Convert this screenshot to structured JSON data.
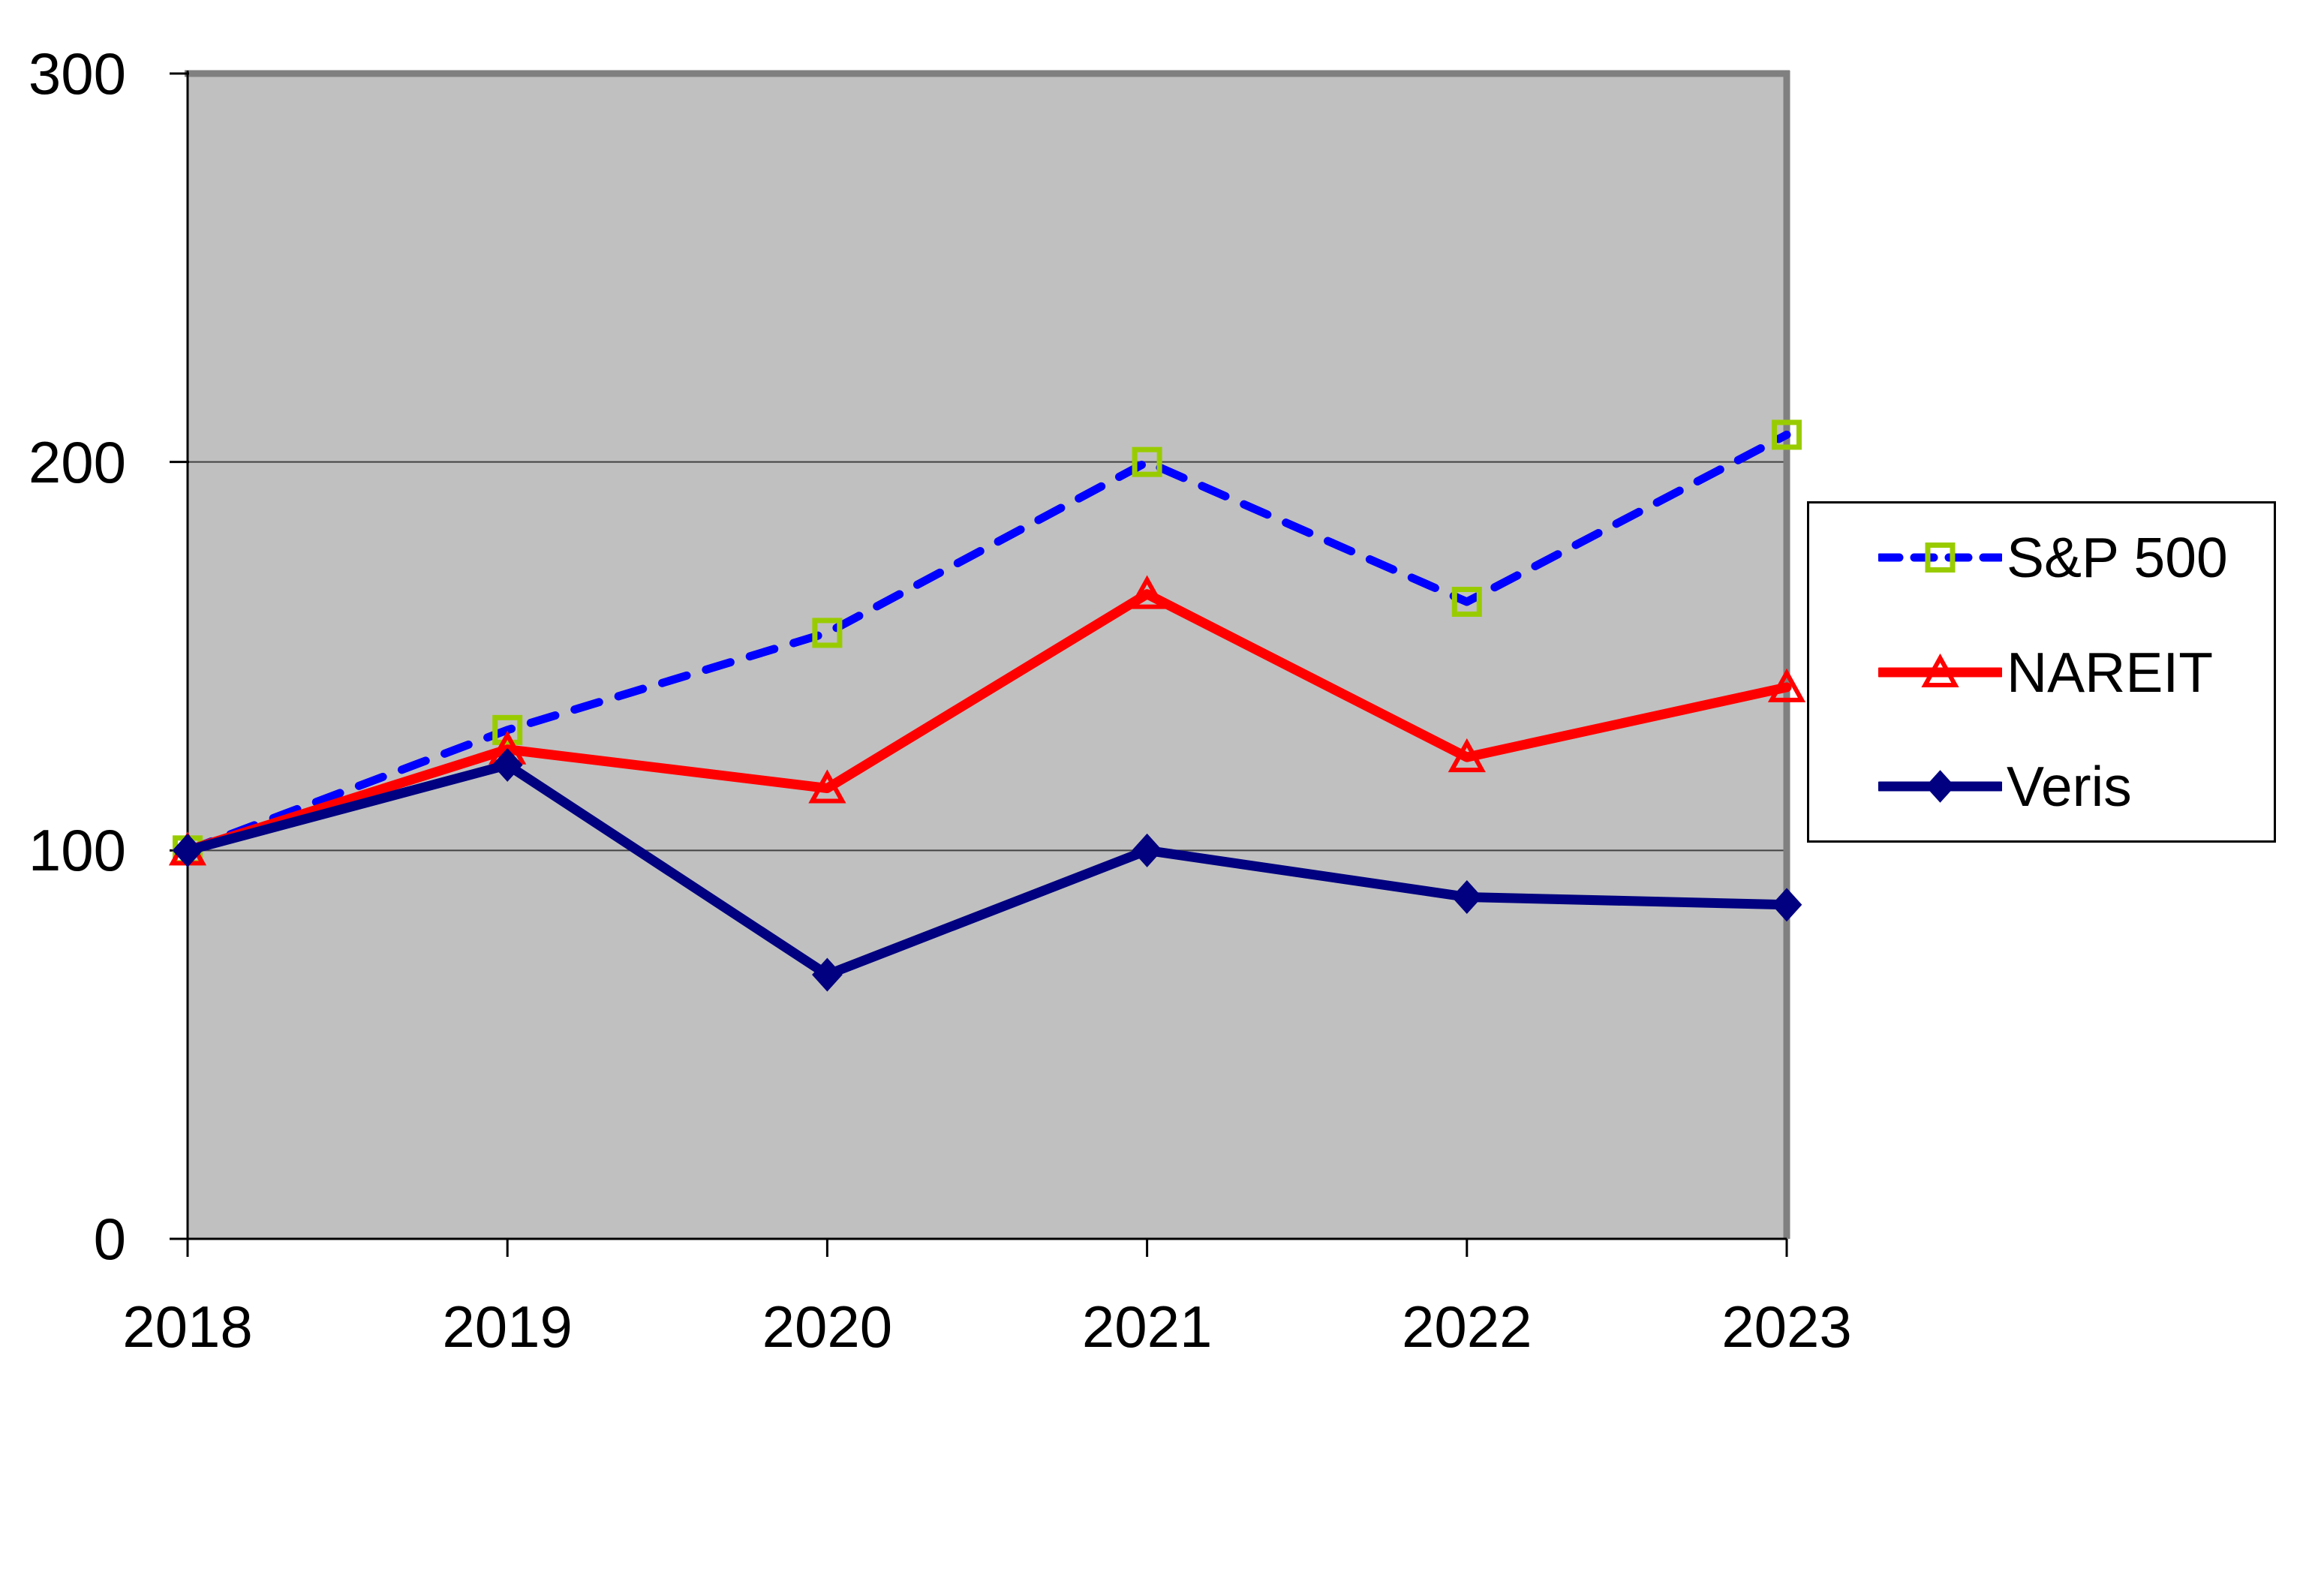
{
  "chart_data": {
    "type": "line",
    "title": "",
    "xlabel": "",
    "ylabel": "",
    "categories": [
      "2018",
      "2019",
      "2020",
      "2021",
      "2022",
      "2023"
    ],
    "series": [
      {
        "name": "S&P 500",
        "values": [
          100,
          131,
          156,
          200,
          164,
          207
        ],
        "line_color": "#0000FF",
        "line_style": "dashed",
        "marker": "square",
        "marker_color": "#99CC00",
        "marker_fill": "none"
      },
      {
        "name": "NAREIT",
        "values": [
          100,
          126,
          116,
          166,
          124,
          142
        ],
        "line_color": "#FF0000",
        "line_style": "solid",
        "marker": "triangle",
        "marker_color": "#FF0000",
        "marker_fill": "none"
      },
      {
        "name": "Veris",
        "values": [
          100,
          122,
          68,
          100,
          88,
          86
        ],
        "line_color": "#000080",
        "line_style": "solid",
        "marker": "diamond",
        "marker_color": "#000080",
        "marker_fill": "#000080"
      }
    ],
    "ylim": [
      0,
      300
    ],
    "y_ticks": [
      {
        "label": "300",
        "value": 300
      },
      {
        "label": "200",
        "value": 200
      },
      {
        "label": "100",
        "value": 100
      },
      {
        "label": "0",
        "value": 0
      }
    ],
    "grid": true,
    "gridline_values": [
      100,
      200
    ],
    "legend_position": "right",
    "plot_bg_color": "#C0C0C0",
    "plot_border_color": "#808080",
    "gridline_color": "#424242",
    "axis_color": "#000000",
    "text_color": "#000000"
  }
}
